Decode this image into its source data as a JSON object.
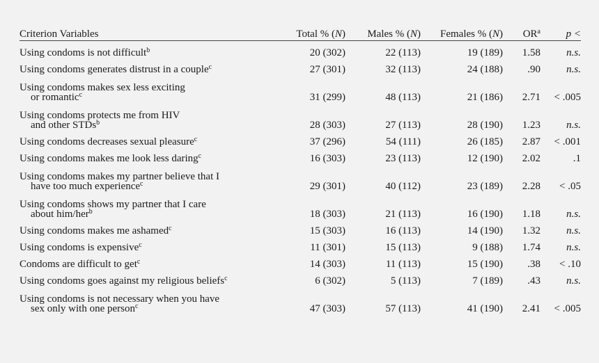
{
  "headers": {
    "criterion": "Criterion Variables",
    "total": "Total % (",
    "males": "Males % (",
    "females": "Females % (",
    "n": "N",
    "close": ")",
    "or": "OR",
    "or_sup": "a",
    "p": "p <"
  },
  "rows": [
    {
      "l1": "Using condoms is not difficult",
      "l2": "",
      "sup": "b",
      "total": "20 (302)",
      "males": "22 (113)",
      "females": "19 (189)",
      "or": "1.58",
      "p": "n.s.",
      "p_italic": true
    },
    {
      "l1": "Using condoms generates distrust in a couple",
      "l2": "",
      "sup": "c",
      "total": "27 (301)",
      "males": "32 (113)",
      "females": "24 (188)",
      "or": ".90",
      "p": "n.s.",
      "p_italic": true
    },
    {
      "l1": "Using condoms makes sex less exciting",
      "l2": "or romantic",
      "sup": "c",
      "total": "31 (299)",
      "males": "48 (113)",
      "females": "21 (186)",
      "or": "2.71",
      "p": "< .005",
      "p_italic": false
    },
    {
      "l1": "Using condoms protects me from HIV",
      "l2": "and other STDs",
      "sup": "b",
      "total": "28 (303)",
      "males": "27 (113)",
      "females": "28 (190)",
      "or": "1.23",
      "p": "n.s.",
      "p_italic": true
    },
    {
      "l1": "Using condoms decreases sexual pleasure",
      "l2": "",
      "sup": "c",
      "total": "37 (296)",
      "males": "54 (111)",
      "females": "26 (185)",
      "or": "2.87",
      "p": "< .001",
      "p_italic": false
    },
    {
      "l1": "Using condoms makes me look less daring",
      "l2": "",
      "sup": "c",
      "total": "16 (303)",
      "males": "23 (113)",
      "females": "12 (190)",
      "or": "2.02",
      "p": ".1",
      "p_italic": false
    },
    {
      "l1": "Using condoms makes my partner believe that I",
      "l2": "have too much experience",
      "sup": "c",
      "total": "29 (301)",
      "males": "40 (112)",
      "females": "23 (189)",
      "or": "2.28",
      "p": "< .05",
      "p_italic": false
    },
    {
      "l1": "Using condoms shows my partner that I care",
      "l2": "about him/her",
      "sup": "b",
      "total": "18 (303)",
      "males": "21 (113)",
      "females": "16 (190)",
      "or": "1.18",
      "p": "n.s.",
      "p_italic": true
    },
    {
      "l1": "Using condoms makes me ashamed",
      "l2": "",
      "sup": "c",
      "total": "15 (303)",
      "males": "16 (113)",
      "females": "14 (190)",
      "or": "1.32",
      "p": "n.s.",
      "p_italic": true
    },
    {
      "l1": "Using condoms is expensive",
      "l2": "",
      "sup": "c",
      "total": "11 (301)",
      "males": "15 (113)",
      "females": "9 (188)",
      "or": "1.74",
      "p": "n.s.",
      "p_italic": true
    },
    {
      "l1": "Condoms are difficult to get",
      "l2": "",
      "sup": "c",
      "total": "14 (303)",
      "males": "11 (113)",
      "females": "15 (190)",
      "or": ".38",
      "p": "< .10",
      "p_italic": false
    },
    {
      "l1": "Using condoms goes against my religious beliefs",
      "l2": "",
      "sup": "c",
      "total": "6 (302)",
      "males": "5 (113)",
      "females": "7 (189)",
      "or": ".43",
      "p": "n.s.",
      "p_italic": true
    },
    {
      "l1": "Using condoms is not necessary when you have",
      "l2": "sex only with one person",
      "sup": "c",
      "total": "47 (303)",
      "males": "57 (113)",
      "females": "41 (190)",
      "or": "2.41",
      "p": "< .005",
      "p_italic": false
    }
  ]
}
